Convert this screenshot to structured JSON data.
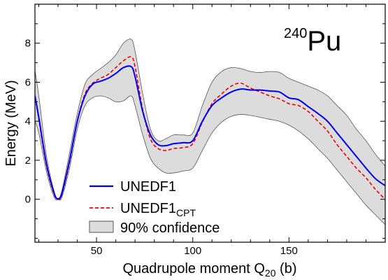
{
  "chart_data": {
    "type": "line",
    "title": "",
    "annotation": {
      "mass_number": "240",
      "element": "Pu"
    },
    "xlabel": {
      "main": "Quadrupole moment Q",
      "sub": "20",
      "unit": " (b)"
    },
    "ylabel": "Energy (MeV)",
    "xlim": [
      18,
      200
    ],
    "ylim": [
      -2.2,
      10
    ],
    "xticks": [
      50,
      100,
      150
    ],
    "yticks": [
      0,
      2,
      4,
      6,
      8
    ],
    "legend": {
      "placement": "bottom-left",
      "entries": [
        {
          "label": "UNEDF1",
          "sub": ""
        },
        {
          "label": "UNEDF1",
          "sub": "CPT"
        },
        {
          "label": "90% confidence",
          "sub": ""
        }
      ]
    },
    "colors": {
      "unedf1": "#0000ee",
      "unedf1_cpt": "#ee0000",
      "band_fill": "#dcdcdc",
      "band_edge": "#555555"
    },
    "x": [
      18,
      20,
      24,
      28,
      30,
      32,
      36,
      40,
      44,
      48,
      52,
      56,
      60,
      64,
      68,
      70,
      74,
      78,
      82,
      86,
      90,
      95,
      100,
      105,
      110,
      115,
      120,
      125,
      130,
      135,
      140,
      145,
      150,
      155,
      160,
      165,
      170,
      175,
      180,
      185,
      190,
      195,
      200
    ],
    "series": [
      {
        "name": "UNEDF1",
        "style": "solid",
        "values": [
          5.3,
          4.2,
          1.8,
          0.3,
          0.02,
          0.3,
          2.0,
          4.0,
          5.3,
          5.9,
          6.05,
          6.2,
          6.45,
          6.75,
          6.8,
          6.3,
          4.5,
          3.3,
          2.8,
          2.75,
          2.85,
          2.9,
          3.0,
          4.0,
          4.8,
          5.2,
          5.5,
          5.65,
          5.6,
          5.6,
          5.55,
          5.5,
          5.2,
          5.1,
          4.75,
          4.4,
          4.0,
          3.4,
          2.8,
          2.2,
          1.6,
          1.05,
          0.7
        ]
      },
      {
        "name": "UNEDF1",
        "sub": "CPT",
        "style": "dashed",
        "values": [
          5.3,
          4.1,
          1.7,
          0.25,
          0.0,
          0.25,
          1.9,
          4.0,
          5.4,
          5.95,
          6.2,
          6.4,
          6.75,
          7.1,
          7.3,
          6.8,
          4.6,
          3.1,
          2.6,
          2.5,
          2.6,
          2.65,
          2.85,
          3.95,
          4.9,
          5.4,
          5.8,
          5.95,
          5.7,
          5.5,
          5.3,
          5.15,
          4.9,
          4.8,
          4.5,
          4.0,
          3.5,
          2.8,
          2.2,
          1.6,
          1.1,
          0.5,
          0.0
        ]
      },
      {
        "name": "90% confidence",
        "style": "band",
        "lower": [
          4.0,
          3.4,
          1.4,
          0.1,
          0.0,
          0.1,
          1.6,
          3.6,
          4.8,
          5.2,
          5.3,
          5.2,
          5.0,
          5.05,
          5.3,
          4.8,
          3.3,
          2.1,
          1.6,
          1.35,
          1.35,
          1.45,
          1.6,
          2.5,
          3.4,
          3.95,
          4.25,
          4.35,
          4.3,
          4.2,
          4.1,
          4.0,
          3.8,
          3.5,
          3.1,
          2.6,
          2.1,
          1.5,
          0.9,
          0.3,
          -0.3,
          -0.8,
          -1.3
        ],
        "upper": [
          6.6,
          5.3,
          2.2,
          0.4,
          0.05,
          0.45,
          2.4,
          4.4,
          5.9,
          6.4,
          6.7,
          7.0,
          7.4,
          8.0,
          8.2,
          7.6,
          5.4,
          3.6,
          3.0,
          3.1,
          3.3,
          3.3,
          3.4,
          4.8,
          6.0,
          6.55,
          6.75,
          6.7,
          6.55,
          6.5,
          6.55,
          6.5,
          6.2,
          6.0,
          5.8,
          5.6,
          5.3,
          4.8,
          4.3,
          3.6,
          3.0,
          2.3,
          1.7
        ]
      }
    ]
  }
}
